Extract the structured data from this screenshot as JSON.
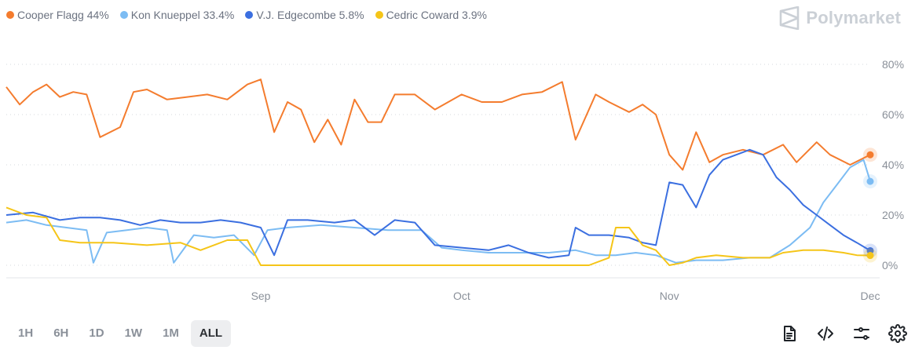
{
  "legend": [
    {
      "label": "Cooper Flagg 44%",
      "color": "#f47c2e"
    },
    {
      "label": "Kon Knueppel 33.4%",
      "color": "#7cbcf3"
    },
    {
      "label": "V.J. Edgecombe 5.8%",
      "color": "#3b6fe0"
    },
    {
      "label": "Cedric Coward 3.9%",
      "color": "#f5c518"
    }
  ],
  "brand": {
    "name": "Polymarket",
    "icon": "polymarket-logo-icon"
  },
  "time_ranges": {
    "options": [
      "1H",
      "6H",
      "1D",
      "1W",
      "1M",
      "ALL"
    ],
    "selected": "ALL"
  },
  "toolbar_icons": [
    "document-icon",
    "code-embed-icon",
    "sliders-icon",
    "gear-icon"
  ],
  "chart_data": {
    "type": "line",
    "x_ticks": [
      "Sep",
      "Oct",
      "Nov",
      "Dec"
    ],
    "y_ticks": [
      "0%",
      "20%",
      "40%",
      "60%",
      "80%"
    ],
    "ylim": [
      0,
      80
    ],
    "xlim": [
      "2025-07-25",
      "2025-12-01"
    ],
    "grid": "horizontal-dotted",
    "legend_position": "top-left",
    "series": [
      {
        "name": "Cooper Flagg",
        "color": "#f47c2e",
        "points": [
          [
            "2025-07-25",
            71
          ],
          [
            "2025-07-27",
            64
          ],
          [
            "2025-07-29",
            69
          ],
          [
            "2025-07-31",
            72
          ],
          [
            "2025-08-02",
            67
          ],
          [
            "2025-08-04",
            69
          ],
          [
            "2025-08-06",
            68
          ],
          [
            "2025-08-08",
            51
          ],
          [
            "2025-08-11",
            55
          ],
          [
            "2025-08-13",
            69
          ],
          [
            "2025-08-15",
            70
          ],
          [
            "2025-08-18",
            66
          ],
          [
            "2025-08-21",
            67
          ],
          [
            "2025-08-24",
            68
          ],
          [
            "2025-08-27",
            66
          ],
          [
            "2025-08-30",
            72
          ],
          [
            "2025-09-01",
            74
          ],
          [
            "2025-09-03",
            53
          ],
          [
            "2025-09-05",
            65
          ],
          [
            "2025-09-07",
            62
          ],
          [
            "2025-09-09",
            49
          ],
          [
            "2025-09-11",
            58
          ],
          [
            "2025-09-13",
            48
          ],
          [
            "2025-09-15",
            66
          ],
          [
            "2025-09-17",
            57
          ],
          [
            "2025-09-19",
            57
          ],
          [
            "2025-09-21",
            68
          ],
          [
            "2025-09-24",
            68
          ],
          [
            "2025-09-27",
            62
          ],
          [
            "2025-10-01",
            68
          ],
          [
            "2025-10-04",
            65
          ],
          [
            "2025-10-07",
            65
          ],
          [
            "2025-10-10",
            68
          ],
          [
            "2025-10-13",
            69
          ],
          [
            "2025-10-16",
            73
          ],
          [
            "2025-10-18",
            50
          ],
          [
            "2025-10-21",
            68
          ],
          [
            "2025-10-23",
            65
          ],
          [
            "2025-10-26",
            61
          ],
          [
            "2025-10-28",
            64
          ],
          [
            "2025-10-30",
            60
          ],
          [
            "2025-11-01",
            44
          ],
          [
            "2025-11-03",
            38
          ],
          [
            "2025-11-05",
            53
          ],
          [
            "2025-11-07",
            41
          ],
          [
            "2025-11-09",
            44
          ],
          [
            "2025-11-12",
            46
          ],
          [
            "2025-11-15",
            44
          ],
          [
            "2025-11-18",
            48
          ],
          [
            "2025-11-20",
            41
          ],
          [
            "2025-11-23",
            49
          ],
          [
            "2025-11-25",
            44
          ],
          [
            "2025-11-28",
            40
          ],
          [
            "2025-12-01",
            44
          ]
        ]
      },
      {
        "name": "Kon Knueppel",
        "color": "#7cbcf3",
        "points": [
          [
            "2025-07-25",
            17
          ],
          [
            "2025-07-28",
            18
          ],
          [
            "2025-07-31",
            16
          ],
          [
            "2025-08-03",
            15
          ],
          [
            "2025-08-06",
            14
          ],
          [
            "2025-08-07",
            1
          ],
          [
            "2025-08-09",
            13
          ],
          [
            "2025-08-12",
            14
          ],
          [
            "2025-08-15",
            15
          ],
          [
            "2025-08-18",
            14
          ],
          [
            "2025-08-19",
            1
          ],
          [
            "2025-08-22",
            12
          ],
          [
            "2025-08-25",
            11
          ],
          [
            "2025-08-28",
            12
          ],
          [
            "2025-08-31",
            4
          ],
          [
            "2025-09-02",
            14
          ],
          [
            "2025-09-05",
            15
          ],
          [
            "2025-09-10",
            16
          ],
          [
            "2025-09-15",
            15
          ],
          [
            "2025-09-20",
            14
          ],
          [
            "2025-09-25",
            14
          ],
          [
            "2025-09-28",
            7
          ],
          [
            "2025-10-01",
            6
          ],
          [
            "2025-10-05",
            5
          ],
          [
            "2025-10-10",
            5
          ],
          [
            "2025-10-14",
            5
          ],
          [
            "2025-10-18",
            6
          ],
          [
            "2025-10-21",
            4
          ],
          [
            "2025-10-24",
            4
          ],
          [
            "2025-10-27",
            5
          ],
          [
            "2025-10-30",
            4
          ],
          [
            "2025-11-02",
            1
          ],
          [
            "2025-11-05",
            2
          ],
          [
            "2025-11-09",
            2
          ],
          [
            "2025-11-13",
            3
          ],
          [
            "2025-11-16",
            3
          ],
          [
            "2025-11-19",
            8
          ],
          [
            "2025-11-22",
            15
          ],
          [
            "2025-11-24",
            25
          ],
          [
            "2025-11-26",
            32
          ],
          [
            "2025-11-28",
            39
          ],
          [
            "2025-11-30",
            42
          ],
          [
            "2025-12-01",
            33.4
          ]
        ]
      },
      {
        "name": "V.J. Edgecombe",
        "color": "#3b6fe0",
        "points": [
          [
            "2025-07-25",
            20
          ],
          [
            "2025-07-29",
            21
          ],
          [
            "2025-08-02",
            18
          ],
          [
            "2025-08-05",
            19
          ],
          [
            "2025-08-08",
            19
          ],
          [
            "2025-08-11",
            18
          ],
          [
            "2025-08-14",
            16
          ],
          [
            "2025-08-17",
            18
          ],
          [
            "2025-08-20",
            17
          ],
          [
            "2025-08-23",
            17
          ],
          [
            "2025-08-26",
            18
          ],
          [
            "2025-08-29",
            17
          ],
          [
            "2025-09-01",
            15
          ],
          [
            "2025-09-03",
            4
          ],
          [
            "2025-09-05",
            18
          ],
          [
            "2025-09-08",
            18
          ],
          [
            "2025-09-12",
            17
          ],
          [
            "2025-09-15",
            18
          ],
          [
            "2025-09-18",
            12
          ],
          [
            "2025-09-21",
            18
          ],
          [
            "2025-09-24",
            17
          ],
          [
            "2025-09-27",
            8
          ],
          [
            "2025-10-01",
            7
          ],
          [
            "2025-10-05",
            6
          ],
          [
            "2025-10-08",
            8
          ],
          [
            "2025-10-11",
            5
          ],
          [
            "2025-10-14",
            3
          ],
          [
            "2025-10-17",
            4
          ],
          [
            "2025-10-18",
            15
          ],
          [
            "2025-10-20",
            12
          ],
          [
            "2025-10-23",
            12
          ],
          [
            "2025-10-26",
            11
          ],
          [
            "2025-10-28",
            9
          ],
          [
            "2025-10-30",
            8
          ],
          [
            "2025-11-01",
            33
          ],
          [
            "2025-11-03",
            32
          ],
          [
            "2025-11-05",
            23
          ],
          [
            "2025-11-07",
            36
          ],
          [
            "2025-11-09",
            42
          ],
          [
            "2025-11-11",
            44
          ],
          [
            "2025-11-13",
            46
          ],
          [
            "2025-11-15",
            44
          ],
          [
            "2025-11-17",
            35
          ],
          [
            "2025-11-19",
            30
          ],
          [
            "2025-11-21",
            24
          ],
          [
            "2025-11-23",
            20
          ],
          [
            "2025-11-25",
            16
          ],
          [
            "2025-11-27",
            12
          ],
          [
            "2025-11-29",
            9
          ],
          [
            "2025-12-01",
            5.8
          ]
        ]
      },
      {
        "name": "Cedric Coward",
        "color": "#f5c518",
        "points": [
          [
            "2025-07-25",
            23
          ],
          [
            "2025-07-28",
            20
          ],
          [
            "2025-07-31",
            19
          ],
          [
            "2025-08-02",
            10
          ],
          [
            "2025-08-05",
            9
          ],
          [
            "2025-08-10",
            9
          ],
          [
            "2025-08-15",
            8
          ],
          [
            "2025-08-20",
            9
          ],
          [
            "2025-08-23",
            6
          ],
          [
            "2025-08-25",
            8
          ],
          [
            "2025-08-27",
            10
          ],
          [
            "2025-08-30",
            10
          ],
          [
            "2025-09-01",
            0
          ],
          [
            "2025-09-10",
            0
          ],
          [
            "2025-09-20",
            0
          ],
          [
            "2025-09-30",
            0
          ],
          [
            "2025-10-10",
            0
          ],
          [
            "2025-10-20",
            0
          ],
          [
            "2025-10-23",
            3
          ],
          [
            "2025-10-24",
            15
          ],
          [
            "2025-10-26",
            15
          ],
          [
            "2025-10-28",
            8
          ],
          [
            "2025-10-30",
            6
          ],
          [
            "2025-11-01",
            0
          ],
          [
            "2025-11-03",
            1
          ],
          [
            "2025-11-05",
            3
          ],
          [
            "2025-11-08",
            4
          ],
          [
            "2025-11-12",
            3
          ],
          [
            "2025-11-16",
            3
          ],
          [
            "2025-11-18",
            5
          ],
          [
            "2025-11-21",
            6
          ],
          [
            "2025-11-24",
            6
          ],
          [
            "2025-11-27",
            5
          ],
          [
            "2025-11-29",
            4
          ],
          [
            "2025-12-01",
            3.9
          ]
        ]
      }
    ]
  }
}
